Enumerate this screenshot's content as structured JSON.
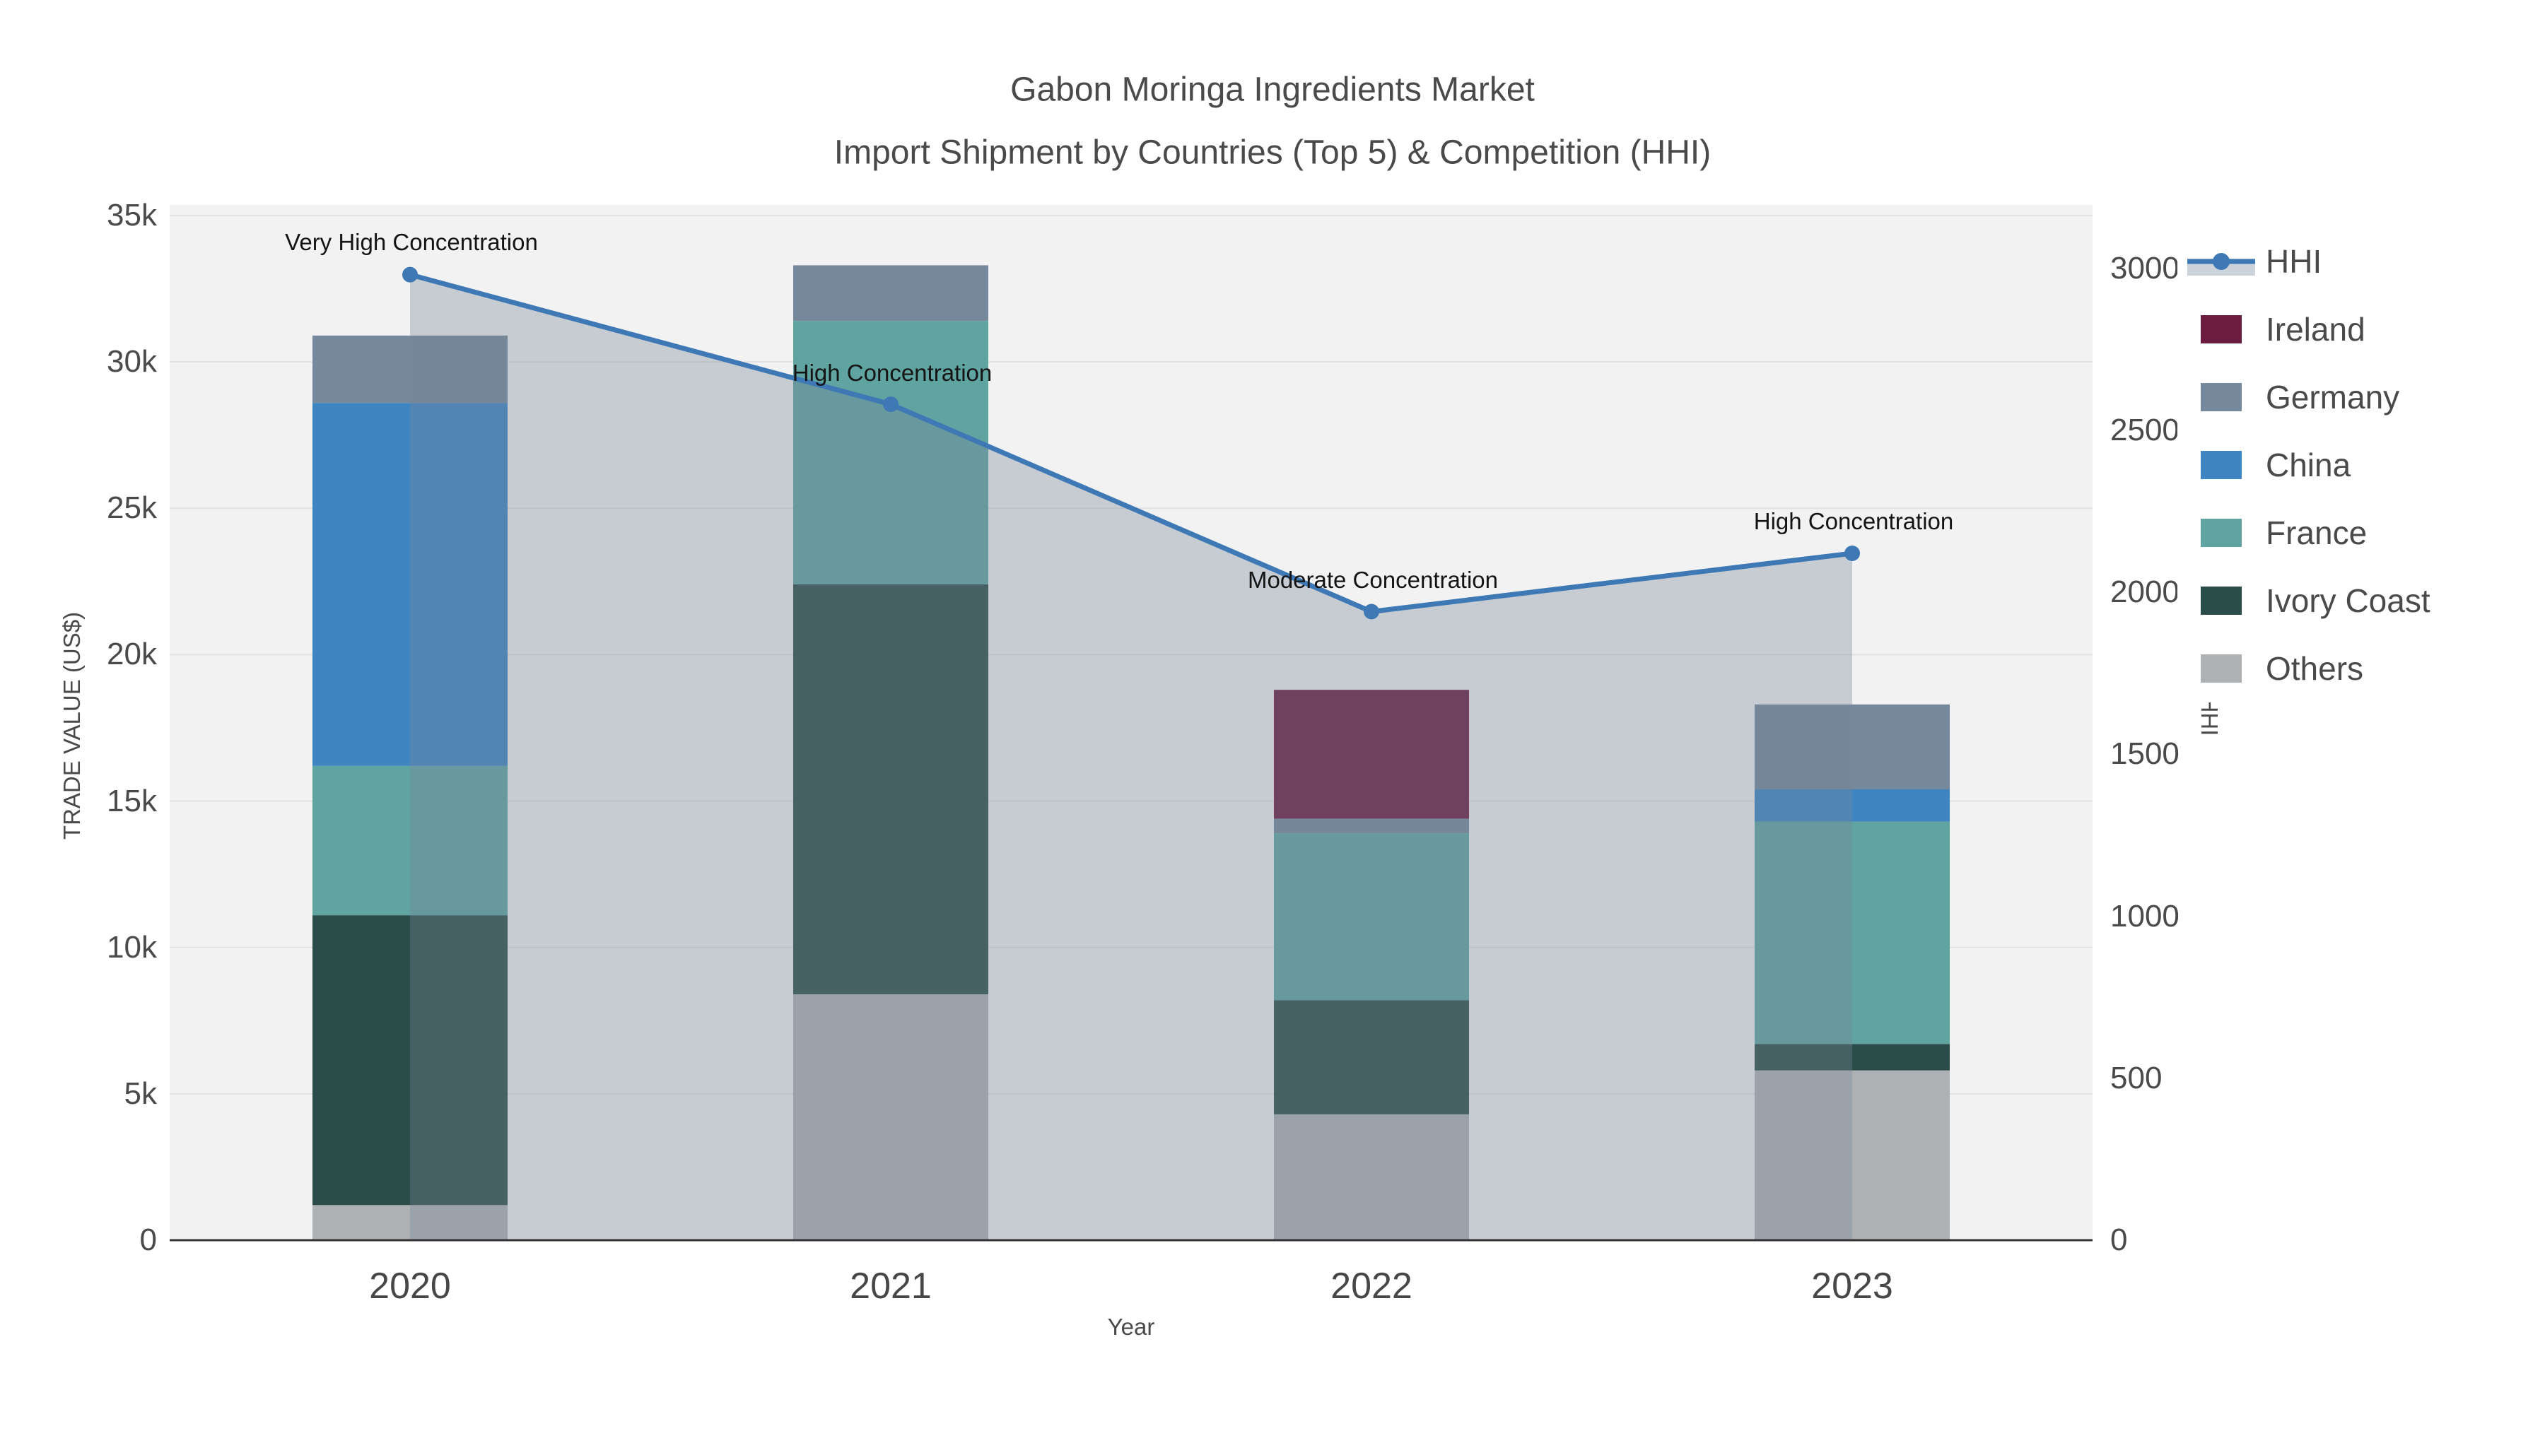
{
  "title": {
    "line1": "Gabon Moringa Ingredients Market",
    "line2": "Import Shipment by Countries (Top 5) & Competition (HHI)"
  },
  "chart_data": {
    "type": "combo: stacked-bar (left axis) + area-line (right axis)",
    "categories": [
      "2020",
      "2021",
      "2022",
      "2023"
    ],
    "bar_series": [
      {
        "name": "Others",
        "color": "#aeb1b4",
        "values": [
          1200,
          8400,
          4300,
          5800
        ]
      },
      {
        "name": "Ivory Coast",
        "color": "#2b4d49",
        "values": [
          9900,
          14000,
          3900,
          900
        ]
      },
      {
        "name": "France",
        "color": "#5fa4a1",
        "values": [
          5100,
          9000,
          5700,
          7600
        ]
      },
      {
        "name": "China",
        "color": "#3f85c1",
        "values": [
          12400,
          0,
          0,
          1100
        ]
      },
      {
        "name": "Germany",
        "color": "#76889c",
        "values": [
          2300,
          1900,
          500,
          2900
        ]
      },
      {
        "name": "Ireland",
        "color": "#6b1d40",
        "values": [
          0,
          0,
          4400,
          0
        ]
      }
    ],
    "line_series": {
      "name": "HHI",
      "values": [
        2980,
        2580,
        1940,
        2120
      ],
      "line_color": "#3e79b5",
      "fill_color": "rgba(119,136,153,0.35)",
      "legend_band_color": "#ccd3da"
    },
    "annotations": [
      {
        "text": "Very High Concentration",
        "year": "2020"
      },
      {
        "text": "High Concentration",
        "year": "2021"
      },
      {
        "text": "Moderate Concentration",
        "year": "2022"
      },
      {
        "text": "High Concentration",
        "year": "2023"
      }
    ],
    "xaxis": {
      "title": "Year",
      "tick_labels": [
        "2020",
        "2021",
        "2022",
        "2023"
      ]
    },
    "yaxis_left": {
      "title": "TRADE VALUE (US$)",
      "range": [
        0,
        35000
      ],
      "tick_labels": [
        "0",
        "5k",
        "10k",
        "15k",
        "20k",
        "25k",
        "30k",
        "35k"
      ]
    },
    "yaxis_right": {
      "title": "HHI",
      "range": [
        0,
        3000
      ],
      "tick_labels": [
        "0",
        "500",
        "1000",
        "1500",
        "2000",
        "2500",
        "3000"
      ]
    },
    "legend": {
      "items": [
        "HHI",
        "Ireland",
        "Germany",
        "China",
        "France",
        "Ivory Coast",
        "Others"
      ]
    },
    "style": {
      "plot_background": "#f2f2f2",
      "gridline_color": "#e2e2e4",
      "axisline_color": "#333333",
      "grid": "horizontal",
      "legend_position": "right"
    }
  }
}
